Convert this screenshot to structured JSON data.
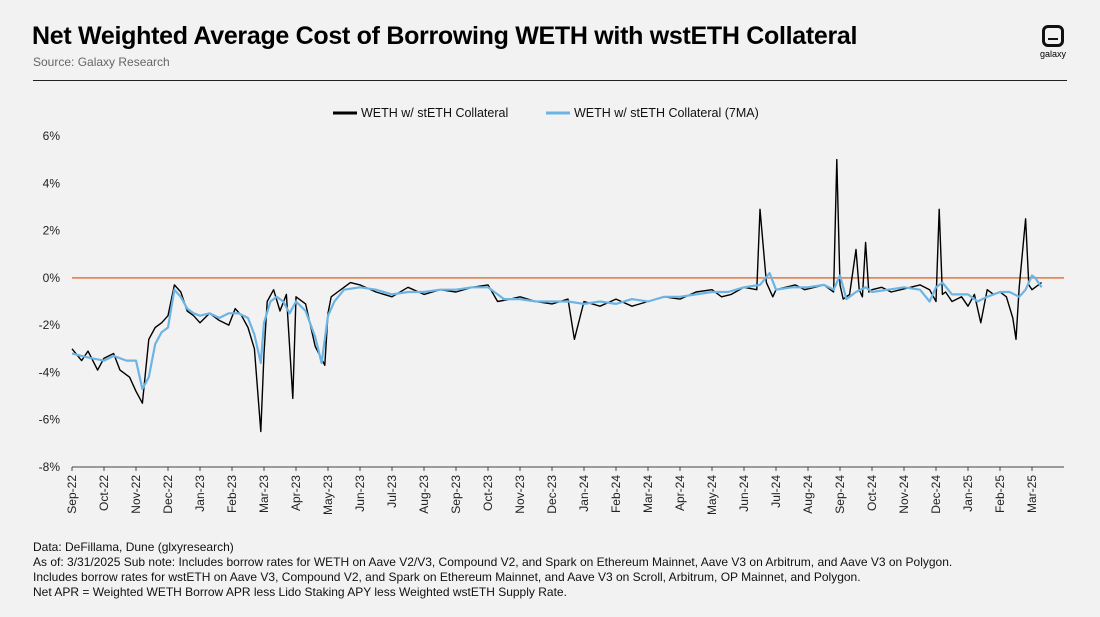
{
  "header": {
    "title": "Net Weighted Average Cost of Borrowing WETH with wstETH Collateral",
    "source": "Source: Galaxy Research",
    "logo_text": "galaxy"
  },
  "notes": {
    "line1": "Data: DeFillama, Dune (glxyresearch)",
    "line2": "As of: 3/31/2025   Sub note:  Includes borrow rates for WETH on Aave V2/V3, Compound V2, and Spark on Ethereum Mainnet, Aave V3 on Arbitrum, and Aave V3 on Polygon.",
    "line3": "Includes borrow rates for wstETH on Aave V3, Compound V2, and Spark on Ethereum Mainnet, and Aave V3 on Scroll, Arbitrum, OP Mainnet, and Polygon.",
    "line4": "Net APR = Weighted WETH Borrow APR less Lido Staking APY less Weighted wstETH Supply Rate."
  },
  "colors": {
    "raw": "#000000",
    "ma": "#6cb4e4",
    "zero": "#e8743b",
    "axis": "#444444"
  },
  "chart_data": {
    "type": "line",
    "title": "Net Weighted Average Cost of Borrowing WETH with wstETH Collateral",
    "xlabel": "",
    "ylabel": "",
    "ylim": [
      -8,
      6
    ],
    "xlim": [
      0,
      31
    ],
    "y_ticks": [
      -8,
      -6,
      -4,
      -2,
      0,
      2,
      4,
      6
    ],
    "y_tick_labels": [
      "-8%",
      "-6%",
      "-4%",
      "-2%",
      "0%",
      "2%",
      "4%",
      "6%"
    ],
    "x_ticks": [
      0,
      1,
      2,
      3,
      4,
      5,
      6,
      7,
      8,
      9,
      10,
      11,
      12,
      13,
      14,
      15,
      16,
      17,
      18,
      19,
      20,
      21,
      22,
      23,
      24,
      25,
      26,
      27,
      28,
      29,
      30
    ],
    "x_tick_labels": [
      "Sep-22",
      "Oct-22",
      "Nov-22",
      "Dec-22",
      "Jan-23",
      "Feb-23",
      "Mar-23",
      "Apr-23",
      "May-23",
      "Jun-23",
      "Jul-23",
      "Aug-23",
      "Sep-23",
      "Oct-23",
      "Nov-23",
      "Dec-23",
      "Jan-24",
      "Feb-24",
      "Mar-24",
      "Apr-24",
      "May-24",
      "Jun-24",
      "Jul-24",
      "Aug-24",
      "Sep-24",
      "Oct-24",
      "Nov-24",
      "Dec-24",
      "Jan-25",
      "Feb-25",
      "Mar-25"
    ],
    "reference_line": {
      "y": 0,
      "label": "0%"
    },
    "legend_position": "top-center",
    "series": [
      {
        "name": "WETH w/ stETH Collateral",
        "x": [
          0,
          0.3,
          0.5,
          0.8,
          1.0,
          1.3,
          1.5,
          1.8,
          2.0,
          2.2,
          2.4,
          2.6,
          2.8,
          3.0,
          3.2,
          3.4,
          3.6,
          3.8,
          4.0,
          4.3,
          4.6,
          4.9,
          5.1,
          5.3,
          5.5,
          5.7,
          5.9,
          6.0,
          6.1,
          6.3,
          6.5,
          6.7,
          6.9,
          7.0,
          7.3,
          7.6,
          7.9,
          8.0,
          8.1,
          8.3,
          8.5,
          8.7,
          9.0,
          9.5,
          10.0,
          10.5,
          11.0,
          11.5,
          12.0,
          12.5,
          13.0,
          13.3,
          13.7,
          14.0,
          14.5,
          15.0,
          15.5,
          15.7,
          16.0,
          16.5,
          17.0,
          17.5,
          18.0,
          18.5,
          19.0,
          19.5,
          20.0,
          20.3,
          20.6,
          21.0,
          21.4,
          21.5,
          21.7,
          21.9,
          22.0,
          22.3,
          22.6,
          22.9,
          23.2,
          23.5,
          23.8,
          23.9,
          24.0,
          24.1,
          24.3,
          24.5,
          24.6,
          24.7,
          24.8,
          24.9,
          25.0,
          25.3,
          25.6,
          25.9,
          26.2,
          26.5,
          26.8,
          27.0,
          27.1,
          27.2,
          27.3,
          27.5,
          27.8,
          28.0,
          28.2,
          28.4,
          28.6,
          28.8,
          29.0,
          29.2,
          29.4,
          29.5,
          29.6,
          29.8,
          29.9,
          30.0,
          30.1,
          30.3
        ],
        "values": [
          -3.0,
          -3.5,
          -3.1,
          -3.9,
          -3.4,
          -3.2,
          -3.9,
          -4.2,
          -4.8,
          -5.3,
          -2.6,
          -2.1,
          -1.9,
          -1.6,
          -0.3,
          -0.6,
          -1.4,
          -1.6,
          -1.9,
          -1.5,
          -1.8,
          -2.0,
          -1.3,
          -1.6,
          -2.1,
          -3.0,
          -6.5,
          -3.2,
          -1.0,
          -0.5,
          -1.4,
          -0.7,
          -5.1,
          -0.8,
          -1.1,
          -2.9,
          -3.7,
          -1.5,
          -0.8,
          -0.6,
          -0.4,
          -0.2,
          -0.3,
          -0.6,
          -0.8,
          -0.4,
          -0.7,
          -0.5,
          -0.6,
          -0.4,
          -0.3,
          -1.0,
          -0.9,
          -0.8,
          -1.0,
          -1.1,
          -0.9,
          -2.6,
          -1.0,
          -1.2,
          -0.9,
          -1.2,
          -1.0,
          -0.8,
          -0.9,
          -0.6,
          -0.5,
          -0.8,
          -0.7,
          -0.4,
          -0.5,
          2.9,
          -0.2,
          -0.8,
          -0.5,
          -0.4,
          -0.3,
          -0.5,
          -0.4,
          -0.3,
          -0.6,
          5.0,
          -0.3,
          -0.9,
          -0.7,
          1.2,
          -0.5,
          -0.8,
          1.5,
          -0.6,
          -0.5,
          -0.4,
          -0.6,
          -0.5,
          -0.4,
          -0.3,
          -0.5,
          -1.0,
          2.9,
          -0.7,
          -0.6,
          -1.0,
          -0.8,
          -1.2,
          -0.7,
          -1.9,
          -0.5,
          -0.7,
          -0.6,
          -0.8,
          -1.7,
          -2.6,
          -0.4,
          2.5,
          -0.3,
          -0.5,
          -0.4,
          -0.2
        ]
      },
      {
        "name": "WETH w/ stETH Collateral (7MA)",
        "x": [
          0,
          0.3,
          0.6,
          1.0,
          1.3,
          1.7,
          2.0,
          2.2,
          2.4,
          2.6,
          2.8,
          3.0,
          3.2,
          3.4,
          3.6,
          3.8,
          4.0,
          4.3,
          4.6,
          4.9,
          5.2,
          5.5,
          5.7,
          5.9,
          6.0,
          6.2,
          6.4,
          6.6,
          6.8,
          7.0,
          7.3,
          7.6,
          7.8,
          8.0,
          8.2,
          8.5,
          9.0,
          9.5,
          10.0,
          10.5,
          11.0,
          11.5,
          12.0,
          12.5,
          13.0,
          13.5,
          14.0,
          14.5,
          15.0,
          15.5,
          16.0,
          16.5,
          17.0,
          17.5,
          18.0,
          18.5,
          19.0,
          19.5,
          20.0,
          20.5,
          21.0,
          21.5,
          21.8,
          22.0,
          22.5,
          23.0,
          23.5,
          23.8,
          24.0,
          24.2,
          24.5,
          24.8,
          25.0,
          25.5,
          26.0,
          26.5,
          26.8,
          27.0,
          27.2,
          27.5,
          28.0,
          28.3,
          28.6,
          29.0,
          29.3,
          29.6,
          29.8,
          30.0,
          30.1,
          30.3
        ],
        "values": [
          -3.2,
          -3.3,
          -3.4,
          -3.5,
          -3.3,
          -3.5,
          -3.5,
          -4.7,
          -4.2,
          -2.8,
          -2.3,
          -2.1,
          -0.5,
          -0.8,
          -1.3,
          -1.5,
          -1.6,
          -1.5,
          -1.7,
          -1.5,
          -1.5,
          -1.7,
          -2.4,
          -3.6,
          -1.9,
          -1.0,
          -0.8,
          -1.0,
          -1.5,
          -1.0,
          -1.4,
          -2.5,
          -3.6,
          -1.6,
          -1.0,
          -0.5,
          -0.4,
          -0.5,
          -0.7,
          -0.6,
          -0.6,
          -0.5,
          -0.5,
          -0.4,
          -0.4,
          -0.9,
          -0.9,
          -1.0,
          -1.0,
          -1.0,
          -1.1,
          -1.0,
          -1.1,
          -0.9,
          -1.0,
          -0.8,
          -0.8,
          -0.7,
          -0.6,
          -0.6,
          -0.4,
          -0.3,
          0.2,
          -0.5,
          -0.4,
          -0.4,
          -0.3,
          -0.5,
          0.1,
          -0.9,
          -0.6,
          -0.4,
          -0.6,
          -0.5,
          -0.4,
          -0.5,
          -1.0,
          -0.4,
          -0.2,
          -0.7,
          -0.7,
          -1.0,
          -0.8,
          -0.6,
          -0.6,
          -0.8,
          -0.5,
          0.1,
          0.0,
          -0.4
        ]
      }
    ]
  }
}
